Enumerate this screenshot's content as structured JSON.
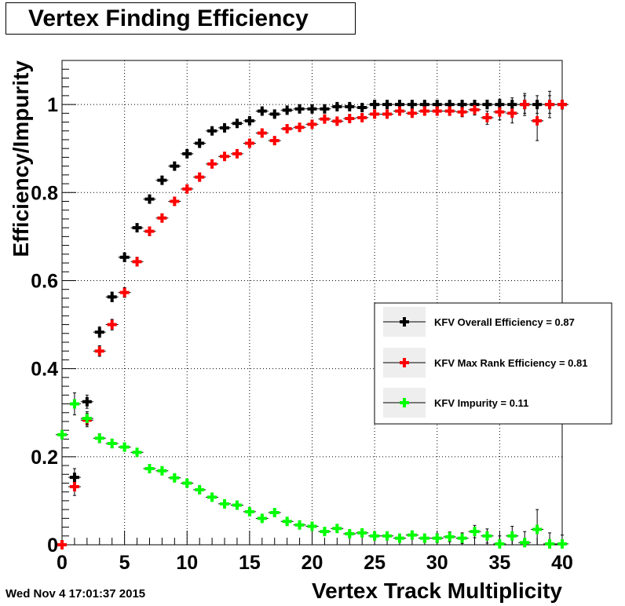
{
  "chart_data": {
    "type": "scatter",
    "title": "Vertex Finding Efficiency",
    "xlabel": "Vertex Track Multiplicity",
    "ylabel": "Efficiency/Impurity",
    "xlim": [
      0,
      40
    ],
    "ylim": [
      0,
      1.1
    ],
    "x_ticks": [
      "0",
      "5",
      "10",
      "15",
      "20",
      "25",
      "30",
      "35",
      "40"
    ],
    "y_ticks": [
      "0",
      "0.2",
      "0.4",
      "0.6",
      "0.8",
      "1"
    ],
    "grid": true,
    "legend_position": "right",
    "x": [
      0,
      1,
      2,
      3,
      4,
      5,
      6,
      7,
      8,
      9,
      10,
      11,
      12,
      13,
      14,
      15,
      16,
      17,
      18,
      19,
      20,
      21,
      22,
      23,
      24,
      25,
      26,
      27,
      28,
      29,
      30,
      31,
      32,
      33,
      34,
      35,
      36,
      37,
      38,
      39,
      40
    ],
    "series": [
      {
        "name": "KFV Overall Efficiency = 0.87",
        "color": "#000000",
        "x": [
          1,
          2,
          3,
          4,
          5,
          6,
          7,
          8,
          9,
          10,
          11,
          12,
          13,
          14,
          15,
          16,
          17,
          18,
          19,
          20,
          21,
          22,
          23,
          24,
          25,
          26,
          27,
          28,
          29,
          30,
          31,
          32,
          33,
          34,
          35,
          36,
          37,
          38,
          39,
          40
        ],
        "values": [
          0.153,
          0.325,
          0.483,
          0.563,
          0.653,
          0.72,
          0.785,
          0.828,
          0.86,
          0.888,
          0.912,
          0.94,
          0.947,
          0.957,
          0.963,
          0.985,
          0.978,
          0.987,
          0.99,
          0.99,
          0.99,
          0.995,
          0.995,
          0.993,
          1.0,
          1.0,
          1.0,
          1.0,
          1.0,
          1.0,
          1.0,
          1.0,
          1.0,
          1.0,
          1.0,
          1.0,
          1.0,
          1.0,
          1.0,
          1.0
        ],
        "errors": [
          0.02,
          0.015,
          0.012,
          0.011,
          0.01,
          0.009,
          0.008,
          0.008,
          0.007,
          0.007,
          0.006,
          0.006,
          0.006,
          0.006,
          0.006,
          0.005,
          0.006,
          0.005,
          0.005,
          0.005,
          0.005,
          0.005,
          0.005,
          0.005,
          0.005,
          0.005,
          0.006,
          0.006,
          0.006,
          0.007,
          0.007,
          0.008,
          0.009,
          0.01,
          0.012,
          0.015,
          0.02,
          0.02,
          0.03,
          0.01
        ]
      },
      {
        "name": "KFV Max Rank Efficiency = 0.81",
        "color": "#ff0000",
        "x": [
          0,
          1,
          2,
          3,
          4,
          5,
          6,
          7,
          8,
          9,
          10,
          11,
          12,
          13,
          14,
          15,
          16,
          17,
          18,
          19,
          20,
          21,
          22,
          23,
          24,
          25,
          26,
          27,
          28,
          29,
          30,
          31,
          32,
          33,
          34,
          35,
          36,
          37,
          38,
          39,
          40
        ],
        "values": [
          0.0,
          0.132,
          0.283,
          0.44,
          0.5,
          0.573,
          0.643,
          0.712,
          0.742,
          0.78,
          0.808,
          0.835,
          0.865,
          0.882,
          0.888,
          0.912,
          0.935,
          0.918,
          0.945,
          0.948,
          0.955,
          0.967,
          0.962,
          0.968,
          0.97,
          0.978,
          0.978,
          0.985,
          0.98,
          0.985,
          0.985,
          0.985,
          0.983,
          0.988,
          0.97,
          0.983,
          0.98,
          1.0,
          0.963,
          1.0,
          1.0
        ],
        "errors": [
          0.003,
          0.02,
          0.015,
          0.012,
          0.012,
          0.011,
          0.01,
          0.01,
          0.009,
          0.009,
          0.008,
          0.008,
          0.008,
          0.007,
          0.007,
          0.007,
          0.007,
          0.007,
          0.006,
          0.006,
          0.006,
          0.006,
          0.006,
          0.006,
          0.007,
          0.007,
          0.007,
          0.008,
          0.008,
          0.009,
          0.009,
          0.01,
          0.011,
          0.012,
          0.015,
          0.018,
          0.022,
          0.025,
          0.045,
          0.02,
          0.01
        ]
      },
      {
        "name": "KFV Impurity = 0.11",
        "color": "#00ff00",
        "x": [
          0,
          1,
          2,
          3,
          4,
          5,
          6,
          7,
          8,
          9,
          10,
          11,
          12,
          13,
          14,
          15,
          16,
          17,
          18,
          19,
          20,
          21,
          22,
          23,
          24,
          25,
          26,
          27,
          28,
          29,
          30,
          31,
          32,
          33,
          34,
          35,
          36,
          37,
          38,
          39,
          40
        ],
        "values": [
          0.25,
          0.32,
          0.287,
          0.242,
          0.23,
          0.222,
          0.21,
          0.173,
          0.168,
          0.152,
          0.14,
          0.125,
          0.108,
          0.093,
          0.09,
          0.075,
          0.06,
          0.073,
          0.053,
          0.045,
          0.042,
          0.03,
          0.037,
          0.025,
          0.027,
          0.02,
          0.02,
          0.015,
          0.022,
          0.015,
          0.015,
          0.018,
          0.015,
          0.03,
          0.02,
          0.002,
          0.02,
          0.005,
          0.035,
          0.002,
          0.002
        ],
        "errors": [
          0.005,
          0.025,
          0.015,
          0.01,
          0.01,
          0.009,
          0.009,
          0.008,
          0.008,
          0.007,
          0.007,
          0.007,
          0.006,
          0.006,
          0.006,
          0.006,
          0.006,
          0.006,
          0.006,
          0.006,
          0.006,
          0.006,
          0.006,
          0.006,
          0.007,
          0.007,
          0.008,
          0.008,
          0.009,
          0.009,
          0.01,
          0.011,
          0.012,
          0.014,
          0.016,
          0.018,
          0.022,
          0.025,
          0.045,
          0.025,
          0.02
        ]
      }
    ]
  },
  "timestamp": "Wed Nov  4 17:01:37 2015"
}
